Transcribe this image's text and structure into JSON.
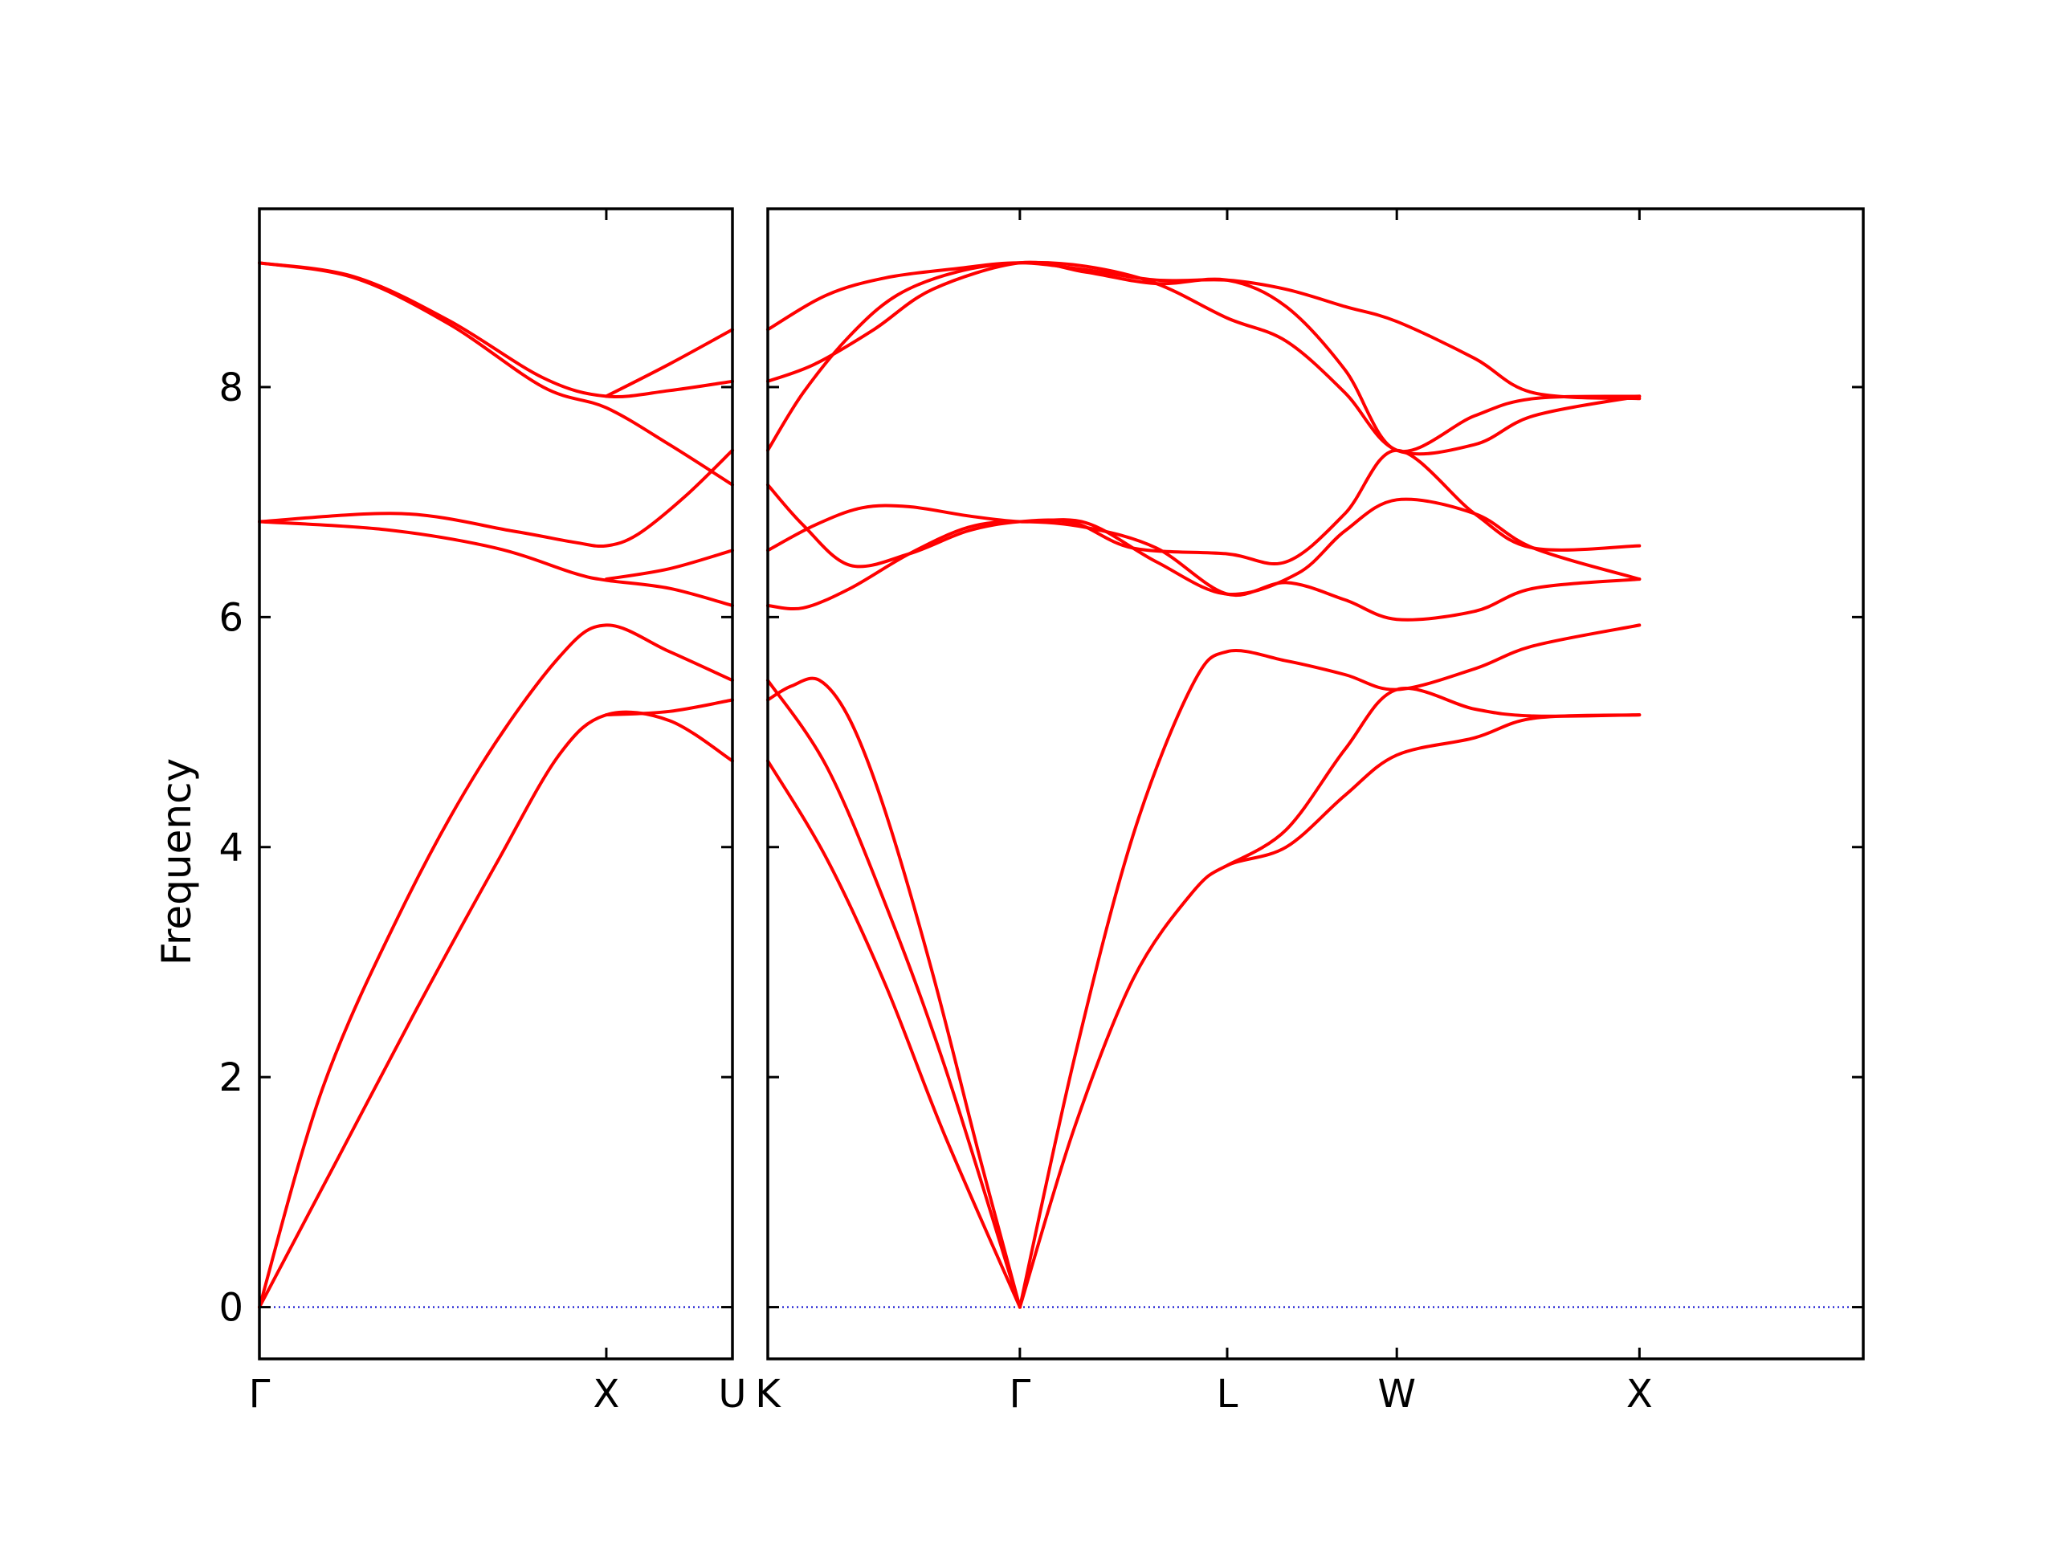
{
  "chart_data": {
    "type": "line",
    "title": "",
    "ylabel": "Frequency",
    "xlabel": "",
    "ylim": [
      -0.45,
      9.55
    ],
    "yticks": [
      0,
      2,
      4,
      6,
      8
    ],
    "grid": false,
    "colors": {
      "band": "#ff0000",
      "zero_line": "#0000cc"
    },
    "panels": [
      {
        "name": "left",
        "xlim": [
          0,
          1.5
        ],
        "labels": [
          {
            "x": 0,
            "text": "Γ"
          },
          {
            "x": 1.1,
            "text": "X"
          },
          {
            "x": 1.5,
            "text": "U"
          }
        ],
        "series": [
          {
            "x": [
              0,
              0.25,
              0.5,
              0.75,
              0.95,
              1.1,
              1.3,
              1.5
            ],
            "values": [
              0,
              1.3,
              2.6,
              3.85,
              4.8,
              5.15,
              5.1,
              4.75
            ]
          },
          {
            "x": [
              0,
              0.2,
              0.45,
              0.7,
              0.95,
              1.1,
              1.3,
              1.5
            ],
            "values": [
              0,
              1.9,
              3.45,
              4.7,
              5.65,
              5.93,
              5.7,
              5.45
            ]
          },
          {
            "x": [
              1.1,
              1.3,
              1.5
            ],
            "values": [
              5.15,
              5.18,
              5.28
            ]
          },
          {
            "x": [
              0,
              0.4,
              0.75,
              1.0,
              1.1,
              1.3,
              1.5
            ],
            "values": [
              6.83,
              6.76,
              6.6,
              6.38,
              6.32,
              6.25,
              6.1
            ]
          },
          {
            "x": [
              0,
              0.45,
              0.8,
              1.0,
              1.1,
              1.2,
              1.35,
              1.5
            ],
            "values": [
              6.83,
              6.9,
              6.75,
              6.65,
              6.62,
              6.72,
              7.05,
              7.45
            ]
          },
          {
            "x": [
              1.1,
              1.3,
              1.5
            ],
            "values": [
              6.33,
              6.42,
              6.58
            ]
          },
          {
            "x": [
              0,
              0.3,
              0.6,
              0.9,
              1.1,
              1.3,
              1.5
            ],
            "values": [
              9.08,
              8.95,
              8.55,
              8.0,
              7.82,
              7.5,
              7.15
            ]
          },
          {
            "x": [
              0,
              0.3,
              0.6,
              0.9,
              1.1,
              1.3,
              1.5
            ],
            "values": [
              9.08,
              8.96,
              8.58,
              8.08,
              7.92,
              7.97,
              8.05
            ]
          },
          {
            "x": [
              1.1,
              1.3,
              1.5
            ],
            "values": [
              7.92,
              8.2,
              8.5
            ]
          }
        ]
      },
      {
        "name": "right",
        "xlim": [
          0,
          4.65
        ],
        "labels": [
          {
            "x": 0,
            "text": "K"
          },
          {
            "x": 1.07,
            "text": "Γ"
          },
          {
            "x": 1.95,
            "text": "L"
          },
          {
            "x": 2.67,
            "text": "W"
          },
          {
            "x": 3.7,
            "text": "X"
          }
        ],
        "series": [
          {
            "x": [
              0,
              0.25,
              0.5,
              0.75,
              1.07
            ],
            "values": [
              4.75,
              3.9,
              2.8,
              1.5,
              0
            ]
          },
          {
            "x": [
              0,
              0.25,
              0.5,
              0.75,
              1.07
            ],
            "values": [
              5.45,
              4.7,
              3.5,
              2.1,
              0
            ]
          },
          {
            "x": [
              0,
              0.1,
              0.22,
              0.35,
              0.5,
              0.7,
              0.9,
              1.07
            ],
            "values": [
              5.28,
              5.4,
              5.45,
              5.1,
              4.3,
              2.9,
              1.3,
              0
            ]
          },
          {
            "x": [
              1.07,
              1.3,
              1.55,
              1.8,
              1.95,
              2.2,
              2.45,
              2.67,
              3.0,
              3.25,
              3.7
            ],
            "values": [
              0,
              1.55,
              2.85,
              3.6,
              3.84,
              4.0,
              4.45,
              4.8,
              4.95,
              5.12,
              5.15
            ]
          },
          {
            "x": [
              1.95,
              2.2,
              2.45,
              2.67,
              3.0,
              3.25,
              3.7
            ],
            "values": [
              3.84,
              4.15,
              4.85,
              5.37,
              5.2,
              5.14,
              5.15
            ]
          },
          {
            "x": [
              1.07,
              1.3,
              1.55,
              1.8,
              1.95,
              2.2,
              2.45,
              2.67,
              3.0,
              3.25,
              3.7
            ],
            "values": [
              0,
              2.15,
              4.1,
              5.4,
              5.7,
              5.62,
              5.5,
              5.37,
              5.55,
              5.75,
              5.93
            ]
          },
          {
            "x": [
              0,
              0.15,
              0.35,
              0.6,
              0.85,
              1.07,
              1.35,
              1.65,
              1.95,
              2.2,
              2.45,
              2.67,
              3.0,
              3.25,
              3.7
            ],
            "values": [
              6.1,
              6.08,
              6.25,
              6.55,
              6.78,
              6.83,
              6.78,
              6.6,
              6.2,
              6.3,
              6.15,
              5.98,
              6.05,
              6.25,
              6.33
            ]
          },
          {
            "x": [
              0,
              0.2,
              0.4,
              0.6,
              0.85,
              1.07,
              1.35,
              1.65,
              1.95,
              2.25,
              2.45,
              2.67,
              3.0,
              3.25,
              3.7
            ],
            "values": [
              6.58,
              6.8,
              6.95,
              6.96,
              6.88,
              6.83,
              6.82,
              6.48,
              6.2,
              6.38,
              6.75,
              7.02,
              6.9,
              6.6,
              6.33
            ]
          },
          {
            "x": [
              0,
              0.15,
              0.35,
              0.6,
              0.85,
              1.07,
              1.3,
              1.55,
              1.95,
              2.2,
              2.45,
              2.67,
              3.0,
              3.25,
              3.7
            ],
            "values": [
              7.15,
              6.8,
              6.45,
              6.55,
              6.75,
              6.83,
              6.82,
              6.6,
              6.55,
              6.48,
              6.9,
              7.45,
              6.9,
              6.6,
              6.62
            ]
          },
          {
            "x": [
              0,
              0.15,
              0.35,
              0.55,
              0.8,
              1.07,
              1.35,
              1.65,
              1.95,
              2.2,
              2.45,
              2.67,
              3.0,
              3.25,
              3.7
            ],
            "values": [
              7.45,
              7.95,
              8.45,
              8.8,
              9.0,
              9.08,
              9.05,
              8.9,
              8.6,
              8.4,
              7.95,
              7.45,
              7.5,
              7.75,
              7.92
            ]
          },
          {
            "x": [
              0,
              0.2,
              0.45,
              0.7,
              1.07,
              1.35,
              1.65,
              1.95,
              2.2,
              2.45,
              2.67,
              3.0,
              3.25,
              3.7
            ],
            "values": [
              8.05,
              8.2,
              8.5,
              8.85,
              9.08,
              9.0,
              8.9,
              8.93,
              8.7,
              8.15,
              7.45,
              7.75,
              7.9,
              7.92
            ]
          },
          {
            "x": [
              0,
              0.25,
              0.5,
              0.8,
              1.07,
              1.35,
              1.65,
              1.95,
              2.2,
              2.45,
              2.67,
              3.0,
              3.25,
              3.7
            ],
            "values": [
              8.5,
              8.8,
              8.95,
              9.03,
              9.08,
              9.02,
              8.93,
              8.93,
              8.85,
              8.7,
              8.57,
              8.25,
              7.95,
              7.9
            ]
          }
        ]
      }
    ]
  }
}
